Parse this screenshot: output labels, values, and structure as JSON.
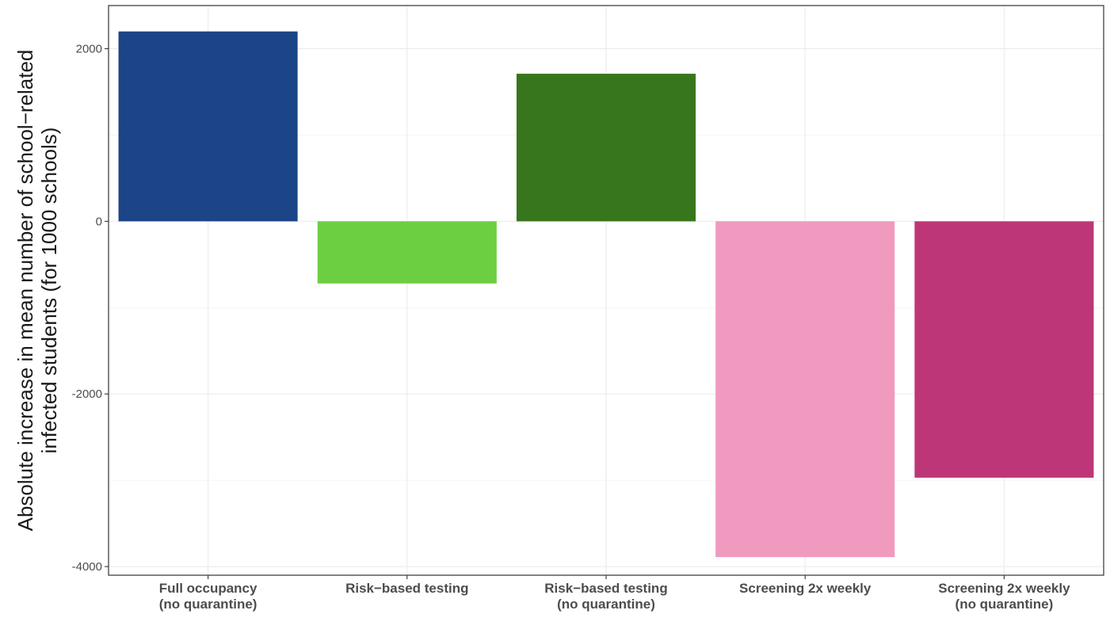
{
  "chart_data": {
    "type": "bar",
    "title": "",
    "xlabel": "",
    "ylabel_lines": [
      "Absolute increase in mean number of school−related",
      "infected students (for 1000 schools)"
    ],
    "categories": [
      [
        "Full occupancy",
        "(no quarantine)"
      ],
      [
        "Risk−based testing"
      ],
      [
        "Risk−based testing",
        "(no quarantine)"
      ],
      [
        "Screening 2x weekly"
      ],
      [
        "Screening 2x weekly",
        "(no quarantine)"
      ]
    ],
    "values": [
      2200,
      -720,
      1710,
      -3890,
      -2970
    ],
    "colors": [
      "#1c4587",
      "#6ccf41",
      "#38761d",
      "#f09ac0",
      "#bd3677"
    ],
    "ylim": [
      -4100,
      2500
    ],
    "yticks": [
      2000,
      0,
      -2000,
      -4000
    ],
    "ytick_labels": [
      "2000",
      "0",
      "-2000",
      "-4000"
    ],
    "grid": true,
    "legend": "none"
  }
}
